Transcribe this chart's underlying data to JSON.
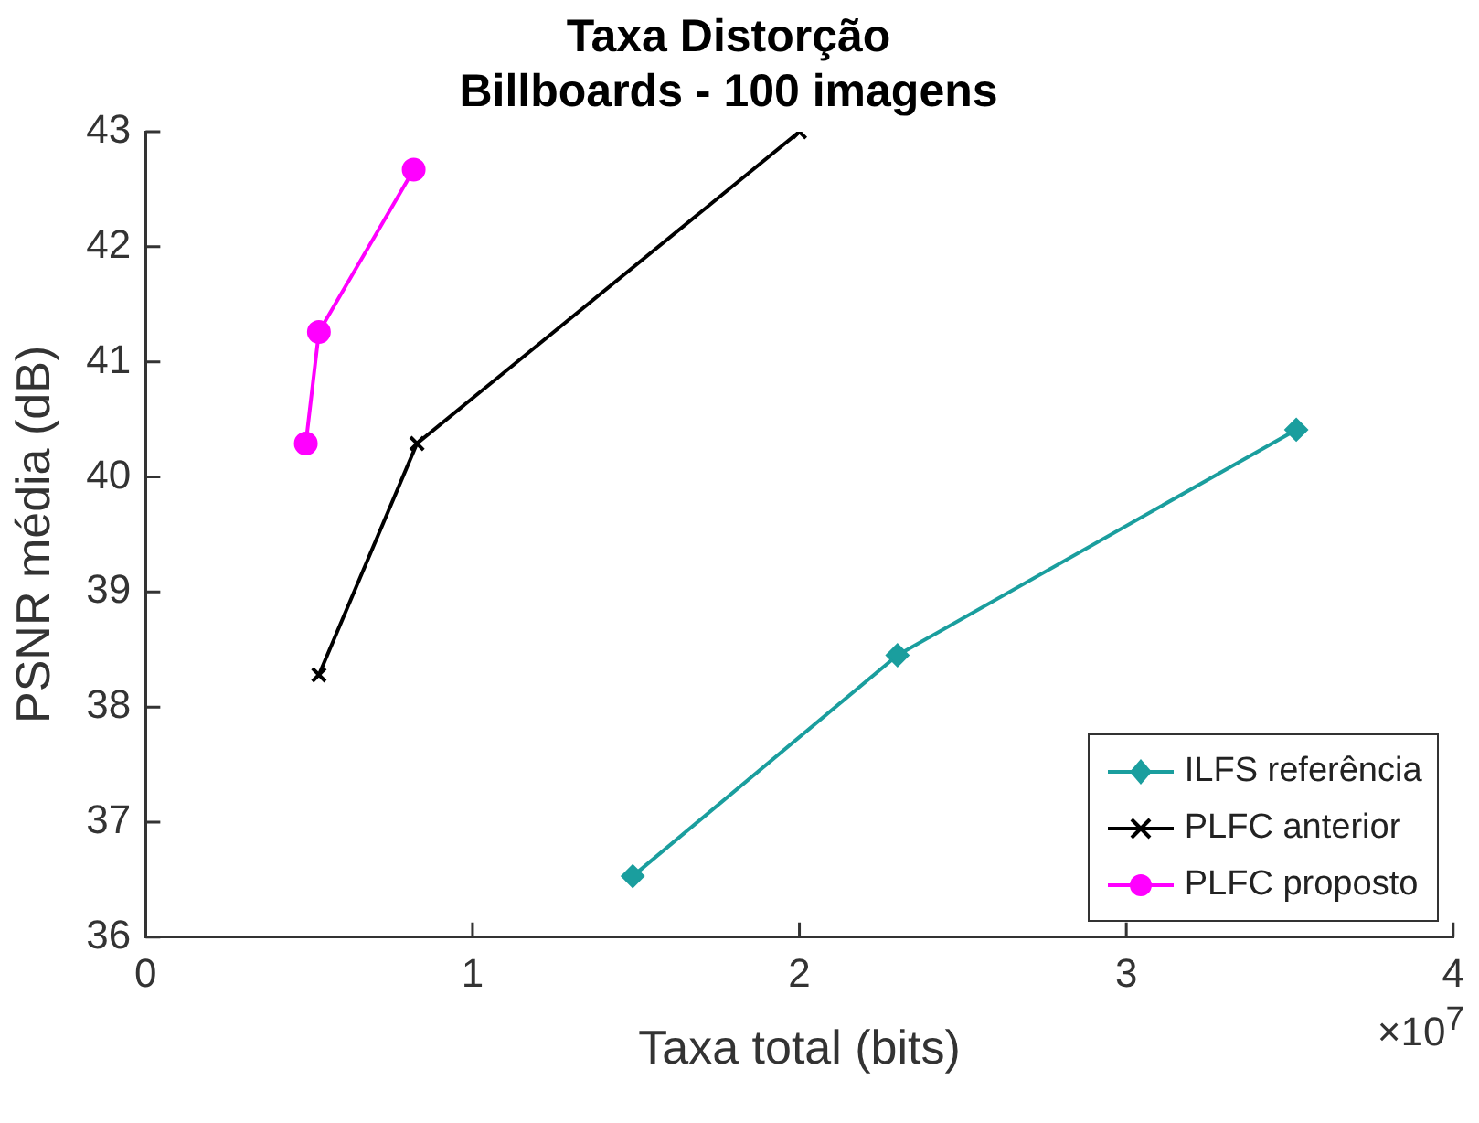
{
  "chart_data": {
    "type": "line",
    "title": "Taxa Distorção\nBillboards - 100 imagens",
    "xlabel": "Taxa total (bits)",
    "ylabel": "PSNR média (dB)",
    "annotations": [
      "×10$^{7}$"
    ],
    "series": [
      {
        "name": "ILFS referência",
        "color": "#1a9e9e",
        "marker": "diamond",
        "x": [
          1.49,
          2.3,
          3.52
        ],
        "values": [
          36.53,
          38.45,
          40.41
        ]
      },
      {
        "name": "PLFC anterior",
        "color": "#000000",
        "marker": "cross",
        "x": [
          0.53,
          0.83,
          2.0
        ],
        "values": [
          38.28,
          40.29,
          43.0
        ]
      },
      {
        "name": "PLFC proposto",
        "color": "#ff00ff",
        "marker": "circle",
        "x": [
          0.49,
          0.53,
          0.82
        ],
        "values": [
          40.29,
          41.26,
          42.67
        ]
      }
    ],
    "xlim": [
      0,
      4
    ],
    "xticks": [
      0,
      1,
      2,
      3,
      4
    ],
    "ylim": [
      36,
      43
    ],
    "yticks": [
      36,
      37,
      38,
      39,
      40,
      41,
      42,
      43
    ],
    "grid": false,
    "legend": "bottom right",
    "line_style": "solid"
  }
}
